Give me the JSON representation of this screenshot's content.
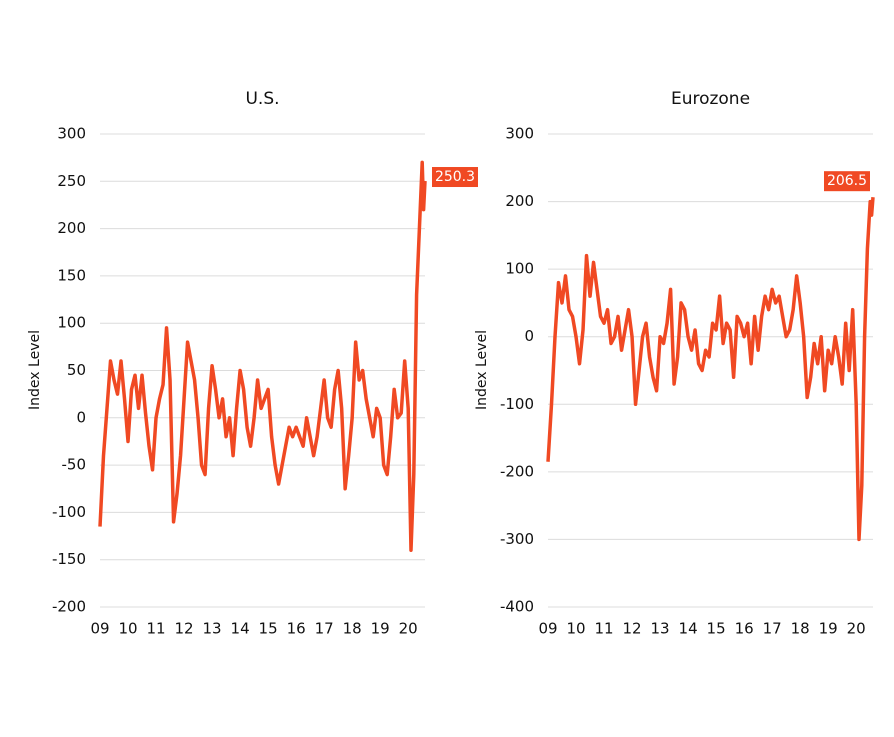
{
  "chart_data": [
    {
      "type": "line",
      "title": "U.S.",
      "y_label": "Index Level",
      "color": "#f04923",
      "grid": true,
      "x": [
        2009,
        2009.125,
        2009.25,
        2009.375,
        2009.5,
        2009.625,
        2009.75,
        2009.875,
        2010,
        2010.125,
        2010.25,
        2010.375,
        2010.5,
        2010.625,
        2010.75,
        2010.875,
        2011,
        2011.125,
        2011.25,
        2011.375,
        2011.5,
        2011.625,
        2011.75,
        2011.875,
        2012,
        2012.125,
        2012.25,
        2012.375,
        2012.5,
        2012.625,
        2012.75,
        2012.875,
        2013,
        2013.125,
        2013.25,
        2013.375,
        2013.5,
        2013.625,
        2013.75,
        2013.875,
        2014,
        2014.125,
        2014.25,
        2014.375,
        2014.5,
        2014.625,
        2014.75,
        2014.875,
        2015,
        2015.125,
        2015.25,
        2015.375,
        2015.5,
        2015.625,
        2015.75,
        2015.875,
        2016,
        2016.125,
        2016.25,
        2016.375,
        2016.5,
        2016.625,
        2016.75,
        2016.875,
        2017,
        2017.125,
        2017.25,
        2017.375,
        2017.5,
        2017.625,
        2017.75,
        2017.875,
        2018,
        2018.125,
        2018.25,
        2018.375,
        2018.5,
        2018.625,
        2018.75,
        2018.875,
        2019,
        2019.125,
        2019.25,
        2019.375,
        2019.5,
        2019.625,
        2019.75,
        2019.875,
        2020,
        2020.1,
        2020.2,
        2020.3,
        2020.4,
        2020.5,
        2020.55,
        2020.6
      ],
      "values": [
        -115,
        -40,
        10,
        60,
        40,
        25,
        60,
        20,
        -25,
        30,
        45,
        10,
        45,
        5,
        -30,
        -55,
        0,
        20,
        35,
        95,
        40,
        -110,
        -80,
        -40,
        20,
        80,
        60,
        40,
        0,
        -50,
        -60,
        10,
        55,
        30,
        0,
        20,
        -20,
        0,
        -40,
        10,
        50,
        30,
        -10,
        -30,
        0,
        40,
        10,
        20,
        30,
        -20,
        -50,
        -70,
        -50,
        -30,
        -10,
        -20,
        -10,
        -20,
        -30,
        0,
        -20,
        -40,
        -20,
        10,
        40,
        0,
        -10,
        30,
        50,
        10,
        -75,
        -40,
        0,
        80,
        40,
        50,
        20,
        0,
        -20,
        10,
        0,
        -50,
        -60,
        -20,
        30,
        0,
        5,
        60,
        10,
        -140,
        -60,
        130,
        200,
        270,
        220,
        250.3
      ],
      "annotation": "250.3",
      "xlim": [
        2009,
        2020.6
      ],
      "xticks": [
        {
          "value": 2009,
          "label": "09"
        },
        {
          "value": 2010,
          "label": "10"
        },
        {
          "value": 2011,
          "label": "11"
        },
        {
          "value": 2012,
          "label": "12"
        },
        {
          "value": 2013,
          "label": "13"
        },
        {
          "value": 2014,
          "label": "14"
        },
        {
          "value": 2015,
          "label": "15"
        },
        {
          "value": 2016,
          "label": "16"
        },
        {
          "value": 2017,
          "label": "17"
        },
        {
          "value": 2018,
          "label": "18"
        },
        {
          "value": 2019,
          "label": "19"
        },
        {
          "value": 2020,
          "label": "20"
        }
      ],
      "ylim": [
        -200,
        300
      ],
      "yticks": [
        -200,
        -150,
        -100,
        -50,
        0,
        50,
        100,
        150,
        200,
        250,
        300
      ]
    },
    {
      "type": "line",
      "title": "Eurozone",
      "y_label": "Index Level",
      "color": "#f04923",
      "grid": true,
      "x": [
        2009,
        2009.125,
        2009.25,
        2009.375,
        2009.5,
        2009.625,
        2009.75,
        2009.875,
        2010,
        2010.125,
        2010.25,
        2010.375,
        2010.5,
        2010.625,
        2010.75,
        2010.875,
        2011,
        2011.125,
        2011.25,
        2011.375,
        2011.5,
        2011.625,
        2011.75,
        2011.875,
        2012,
        2012.125,
        2012.25,
        2012.375,
        2012.5,
        2012.625,
        2012.75,
        2012.875,
        2013,
        2013.125,
        2013.25,
        2013.375,
        2013.5,
        2013.625,
        2013.75,
        2013.875,
        2014,
        2014.125,
        2014.25,
        2014.375,
        2014.5,
        2014.625,
        2014.75,
        2014.875,
        2015,
        2015.125,
        2015.25,
        2015.375,
        2015.5,
        2015.625,
        2015.75,
        2015.875,
        2016,
        2016.125,
        2016.25,
        2016.375,
        2016.5,
        2016.625,
        2016.75,
        2016.875,
        2017,
        2017.125,
        2017.25,
        2017.375,
        2017.5,
        2017.625,
        2017.75,
        2017.875,
        2018,
        2018.125,
        2018.25,
        2018.375,
        2018.5,
        2018.625,
        2018.75,
        2018.875,
        2019,
        2019.125,
        2019.25,
        2019.375,
        2019.5,
        2019.625,
        2019.75,
        2019.875,
        2020,
        2020.1,
        2020.2,
        2020.3,
        2020.4,
        2020.5,
        2020.55,
        2020.6
      ],
      "values": [
        -185,
        -100,
        0,
        80,
        50,
        90,
        40,
        30,
        0,
        -40,
        10,
        120,
        60,
        110,
        70,
        30,
        20,
        40,
        -10,
        0,
        30,
        -20,
        10,
        40,
        0,
        -100,
        -50,
        0,
        20,
        -30,
        -60,
        -80,
        0,
        -10,
        20,
        70,
        -70,
        -30,
        50,
        40,
        0,
        -20,
        10,
        -40,
        -50,
        -20,
        -30,
        20,
        10,
        60,
        -10,
        20,
        10,
        -60,
        30,
        20,
        0,
        20,
        -40,
        30,
        -20,
        30,
        60,
        40,
        70,
        50,
        60,
        30,
        0,
        10,
        40,
        90,
        50,
        0,
        -90,
        -60,
        -10,
        -40,
        0,
        -80,
        -20,
        -40,
        0,
        -30,
        -70,
        20,
        -50,
        40,
        -100,
        -300,
        -220,
        0,
        130,
        200,
        180,
        206.5
      ],
      "annotation": "206.5",
      "xlim": [
        2009,
        2020.6
      ],
      "xticks": [
        {
          "value": 2009,
          "label": "09"
        },
        {
          "value": 2010,
          "label": "10"
        },
        {
          "value": 2011,
          "label": "11"
        },
        {
          "value": 2012,
          "label": "12"
        },
        {
          "value": 2013,
          "label": "13"
        },
        {
          "value": 2014,
          "label": "14"
        },
        {
          "value": 2015,
          "label": "15"
        },
        {
          "value": 2016,
          "label": "16"
        },
        {
          "value": 2017,
          "label": "17"
        },
        {
          "value": 2018,
          "label": "18"
        },
        {
          "value": 2019,
          "label": "19"
        },
        {
          "value": 2020,
          "label": "20"
        }
      ],
      "ylim": [
        -400,
        300
      ],
      "yticks": [
        -400,
        -300,
        -200,
        -100,
        0,
        100,
        200,
        300
      ]
    }
  ]
}
